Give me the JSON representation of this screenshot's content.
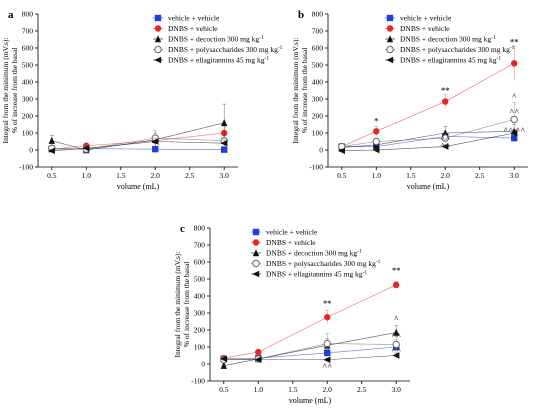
{
  "chart_data": [
    {
      "type": "line",
      "panel_label": "a",
      "xlabel": "volume (mL)",
      "ylabel": [
        "Integral from the minimum (mV.s):",
        "% of increase from the basal"
      ],
      "x": [
        0.5,
        1.0,
        2.0,
        3.0
      ],
      "xlim": [
        0.3,
        3.2
      ],
      "xticks": [
        "0.5",
        "1.0",
        "1.5",
        "2.0",
        "2.5",
        "3.0"
      ],
      "ylim": [
        -100,
        800
      ],
      "yticks": [
        "-100",
        "0",
        "100",
        "200",
        "300",
        "400",
        "500",
        "600",
        "700",
        "800"
      ],
      "legend_position": "top-right",
      "grid": false,
      "series": [
        {
          "name": "vehicle + vehicle",
          "color": "#1f3fd8",
          "marker": "square",
          "values": [
            5,
            8,
            5,
            2
          ],
          "errors": [
            6,
            8,
            6,
            4
          ]
        },
        {
          "name": "DNBS + vehicle",
          "color": "#e82424",
          "marker": "circle",
          "values": [
            5,
            25,
            55,
            100
          ],
          "errors": [
            8,
            12,
            25,
            40
          ]
        },
        {
          "name": "DNBS + decoction 300 mg kg",
          "sup": "-1",
          "color": "#111111",
          "marker": "triangle-up",
          "values": [
            55,
            0,
            60,
            160
          ],
          "errors": [
            30,
            10,
            40,
            110
          ]
        },
        {
          "name": "DNBS + polysaccharides 300 mg kg",
          "sup": "-1",
          "color": "#666666",
          "marker": "circle-open",
          "values": [
            10,
            5,
            70,
            55
          ],
          "errors": [
            10,
            8,
            45,
            30
          ]
        },
        {
          "name": "DNBS + ellagitannins 45 mg kg",
          "sup": "-1",
          "color": "#111111",
          "marker": "triangle-left",
          "values": [
            -5,
            10,
            50,
            40
          ],
          "errors": [
            8,
            10,
            20,
            20
          ]
        }
      ],
      "annotations": []
    },
    {
      "type": "line",
      "panel_label": "b",
      "xlabel": "volume (mL)",
      "ylabel": [
        "Integral from the minimum (mV.s):",
        "% of increase from the basal"
      ],
      "x": [
        0.5,
        1.0,
        2.0,
        3.0
      ],
      "xlim": [
        0.3,
        3.2
      ],
      "xticks": [
        "0.5",
        "1.0",
        "1.5",
        "2.0",
        "2.5",
        "3.0"
      ],
      "ylim": [
        -100,
        800
      ],
      "yticks": [
        "-100",
        "0",
        "100",
        "200",
        "300",
        "400",
        "500",
        "600",
        "700",
        "800"
      ],
      "legend_position": "top-left",
      "grid": false,
      "series": [
        {
          "name": "vehicle + vehicle",
          "color": "#1f3fd8",
          "marker": "square",
          "values": [
            20,
            20,
            80,
            70
          ],
          "errors": [
            10,
            10,
            20,
            20
          ]
        },
        {
          "name": "DNBS + vehicle",
          "color": "#e82424",
          "marker": "circle",
          "values": [
            20,
            110,
            285,
            510
          ],
          "errors": [
            15,
            30,
            40,
            100
          ]
        },
        {
          "name": "DNBS + decoction 300 mg kg",
          "sup": "-1",
          "color": "#111111",
          "marker": "triangle-up",
          "values": [
            15,
            30,
            100,
            110
          ],
          "errors": [
            10,
            15,
            40,
            40
          ]
        },
        {
          "name": "DNBS + polysaccharides 300 mg kg",
          "sup": "-1",
          "color": "#666666",
          "marker": "circle-open",
          "values": [
            20,
            50,
            70,
            180
          ],
          "errors": [
            10,
            20,
            30,
            100
          ]
        },
        {
          "name": "DNBS + ellagitannins 45 mg kg",
          "sup": "-1",
          "color": "#111111",
          "marker": "triangle-left",
          "values": [
            -5,
            0,
            20,
            100
          ],
          "errors": [
            8,
            10,
            10,
            20
          ]
        }
      ],
      "annotations": [
        {
          "x": 1.0,
          "y": 155,
          "text": "*"
        },
        {
          "x": 2.0,
          "y": 335,
          "text": "**"
        },
        {
          "x": 3.0,
          "y": 620,
          "text": "**"
        },
        {
          "x": 1.0,
          "y": -15,
          "text": "^"
        },
        {
          "x": 2.0,
          "y": 50,
          "text": "^^"
        },
        {
          "x": 2.0,
          "y": 10,
          "text": "^^"
        },
        {
          "x": 3.0,
          "y": 300,
          "text": "^"
        },
        {
          "x": 3.0,
          "y": 210,
          "text": "^^"
        },
        {
          "x": 3.0,
          "y": 100,
          "text": "^^ ^^"
        }
      ]
    },
    {
      "type": "line",
      "panel_label": "c",
      "xlabel": "volume (mL)",
      "ylabel": [
        "Integral from the minimum (mV.s):",
        "% of increase from the basal"
      ],
      "x": [
        0.5,
        1.0,
        2.0,
        3.0
      ],
      "xlim": [
        0.3,
        3.2
      ],
      "xticks": [
        "0.5",
        "1.0",
        "1.5",
        "2.0",
        "2.5",
        "3.0"
      ],
      "ylim": [
        -100,
        800
      ],
      "yticks": [
        "-100",
        "0",
        "100",
        "200",
        "300",
        "400",
        "500",
        "600",
        "700",
        "800"
      ],
      "legend_position": "top-left",
      "grid": false,
      "series": [
        {
          "name": "vehicle + vehicle",
          "color": "#1f3fd8",
          "marker": "square",
          "values": [
            30,
            35,
            65,
            100
          ],
          "errors": [
            10,
            10,
            20,
            20
          ]
        },
        {
          "name": "DNBS + vehicle",
          "color": "#e82424",
          "marker": "circle",
          "values": [
            35,
            70,
            275,
            465
          ],
          "errors": [
            10,
            15,
            40,
            20
          ]
        },
        {
          "name": "DNBS + decoction 300 mg kg",
          "sup": "-1",
          "color": "#111111",
          "marker": "triangle-up",
          "values": [
            -10,
            30,
            110,
            185
          ],
          "errors": [
            10,
            10,
            40,
            40
          ]
        },
        {
          "name": "DNBS + polysaccharides 300 mg kg",
          "sup": "-1",
          "color": "#666666",
          "marker": "circle-open",
          "values": [
            25,
            30,
            120,
            115
          ],
          "errors": [
            10,
            10,
            60,
            30
          ]
        },
        {
          "name": "DNBS + ellagitannins 45 mg kg",
          "sup": "-1",
          "color": "#111111",
          "marker": "triangle-left",
          "values": [
            30,
            25,
            25,
            50
          ],
          "errors": [
            10,
            10,
            10,
            15
          ]
        }
      ],
      "annotations": [
        {
          "x": 2.0,
          "y": 340,
          "text": "**"
        },
        {
          "x": 3.0,
          "y": 535,
          "text": "**"
        },
        {
          "x": 2.0,
          "y": 75,
          "text": "^"
        },
        {
          "x": 2.0,
          "y": -30,
          "text": "^^"
        },
        {
          "x": 3.0,
          "y": 250,
          "text": "^"
        },
        {
          "x": 3.0,
          "y": 150,
          "text": "^^"
        },
        {
          "x": 3.0,
          "y": 65,
          "text": "^^"
        }
      ]
    }
  ]
}
